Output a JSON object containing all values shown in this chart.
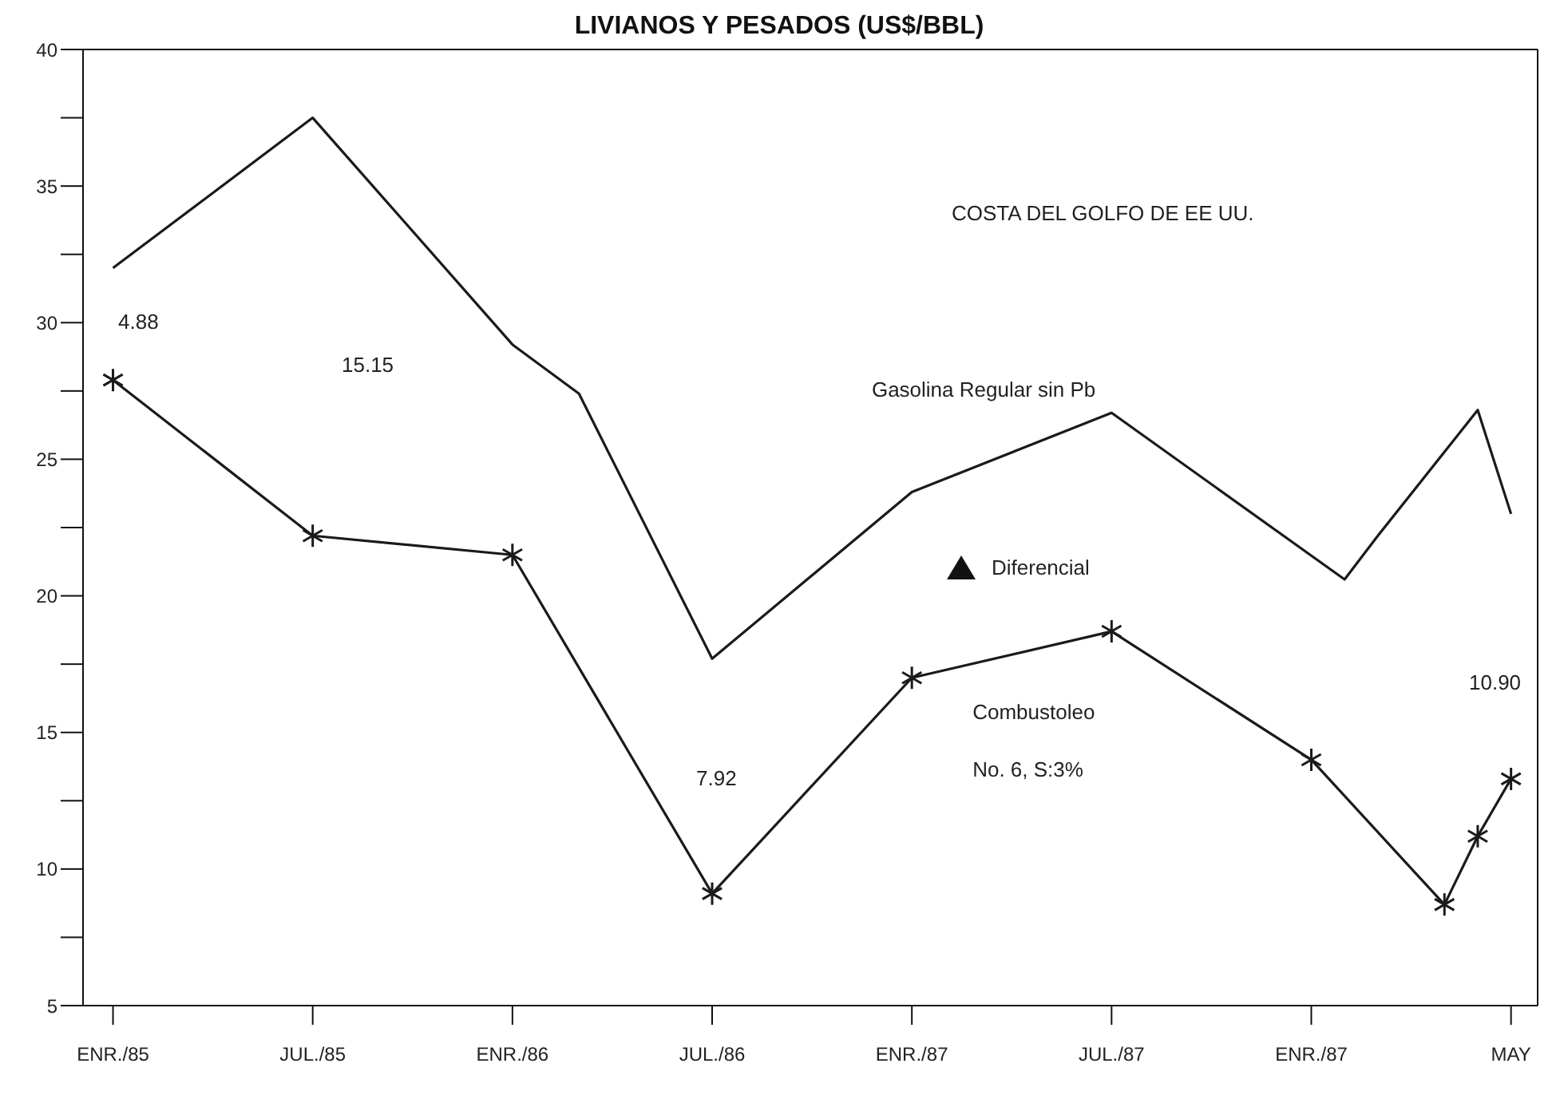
{
  "chart_data": {
    "type": "line",
    "title": "LIVIANOS Y PESADOS (US$/BBL)",
    "categories": [
      "ENR./85",
      null,
      null,
      null,
      null,
      null,
      "JUL./85",
      null,
      null,
      null,
      null,
      null,
      "ENR./86",
      null,
      null,
      null,
      null,
      null,
      "JUL./86",
      null,
      null,
      null,
      null,
      null,
      "ENR./87",
      null,
      null,
      null,
      null,
      null,
      "JUL./87",
      null,
      null,
      null,
      null,
      null,
      "ENR./87",
      null,
      null,
      null,
      null,
      null,
      "MAY"
    ],
    "ylim": [
      5,
      40
    ],
    "yticks": [
      5,
      {
        "value": 7.5,
        "label": null
      },
      10,
      {
        "value": 12.5,
        "label": null
      },
      15,
      {
        "value": 17.5,
        "label": null
      },
      20,
      {
        "value": 22.5,
        "label": null
      },
      25,
      {
        "value": 27.5,
        "label": null
      },
      30,
      {
        "value": 32.5,
        "label": null
      },
      35,
      {
        "value": 37.5,
        "label": null
      },
      40
    ],
    "grid": false,
    "legend": false,
    "line_style": "solid",
    "series": [
      {
        "name": "Gasolina Regular sin Pb",
        "color": "#1a1a1a",
        "marker": "none",
        "values": [
          32.0,
          null,
          null,
          null,
          null,
          null,
          37.5,
          null,
          null,
          null,
          null,
          null,
          29.2,
          null,
          27.4,
          null,
          null,
          null,
          17.7,
          null,
          null,
          null,
          null,
          null,
          23.8,
          null,
          null,
          null,
          null,
          null,
          26.7,
          null,
          null,
          null,
          null,
          null,
          null,
          20.6,
          22.2,
          null,
          null,
          26.8,
          23.0
        ]
      },
      {
        "name": "Combustoleo No. 6, S:3%",
        "color": "#1a1a1a",
        "marker": "cross",
        "values": [
          27.9,
          null,
          null,
          null,
          null,
          null,
          22.2,
          null,
          null,
          null,
          null,
          null,
          21.5,
          null,
          null,
          null,
          null,
          null,
          9.1,
          null,
          null,
          null,
          null,
          null,
          17.0,
          null,
          null,
          null,
          null,
          null,
          18.7,
          null,
          null,
          null,
          null,
          null,
          14.0,
          null,
          null,
          null,
          8.7,
          11.2,
          13.3
        ]
      }
    ],
    "annotations": [
      "COSTA DEL GOLFO DE EE UU.",
      "Diferencial",
      "4.88",
      "15.15",
      "7.92",
      "10.90"
    ]
  }
}
